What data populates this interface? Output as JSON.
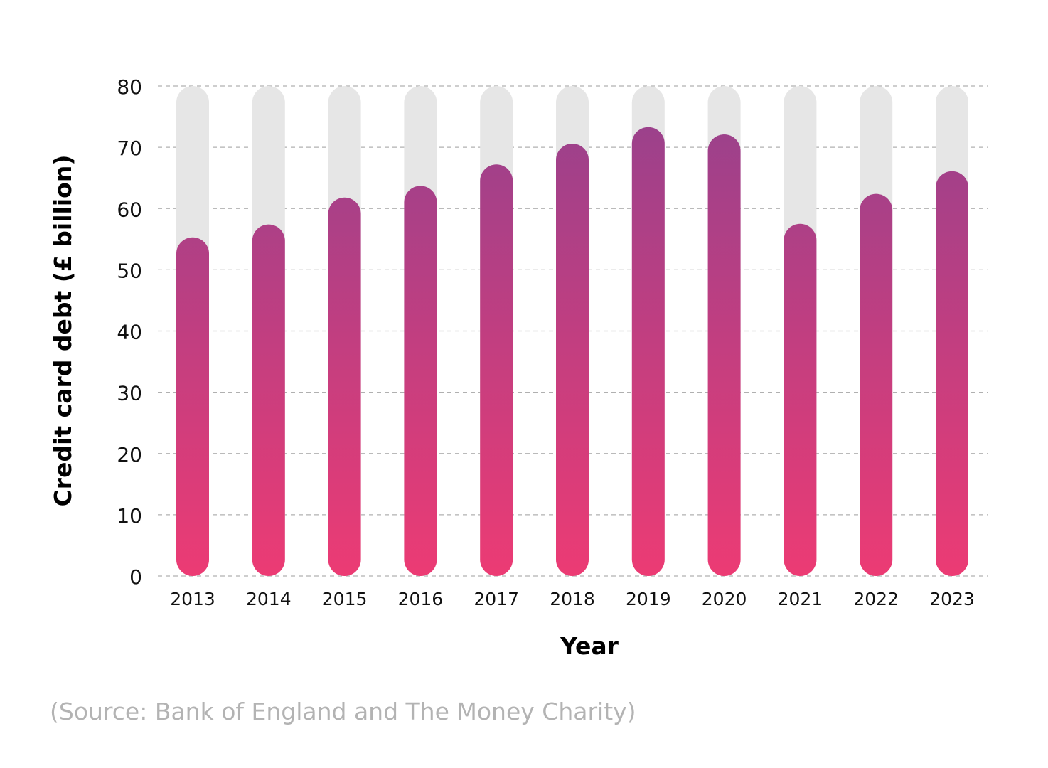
{
  "chart_data": {
    "type": "bar",
    "title": "",
    "xlabel": "Year",
    "ylabel": "Credit card debt (£ billion)",
    "ylim": [
      0,
      80
    ],
    "yticks": [
      0,
      10,
      20,
      30,
      40,
      50,
      60,
      70,
      80
    ],
    "grid": true,
    "categories": [
      "2013",
      "2014",
      "2015",
      "2016",
      "2017",
      "2018",
      "2019",
      "2020",
      "2021",
      "2022",
      "2023"
    ],
    "values": [
      55.3,
      57.4,
      61.8,
      63.7,
      67.2,
      70.6,
      73.3,
      72.1,
      57.5,
      62.4,
      66.1
    ],
    "colors": {
      "bar_top": "#9c418b",
      "bar_bottom": "#ec3b74",
      "track": "#e6e6e6",
      "grid": "#b0b0b0"
    }
  },
  "source_note": "(Source: Bank of England and The Money Charity)"
}
